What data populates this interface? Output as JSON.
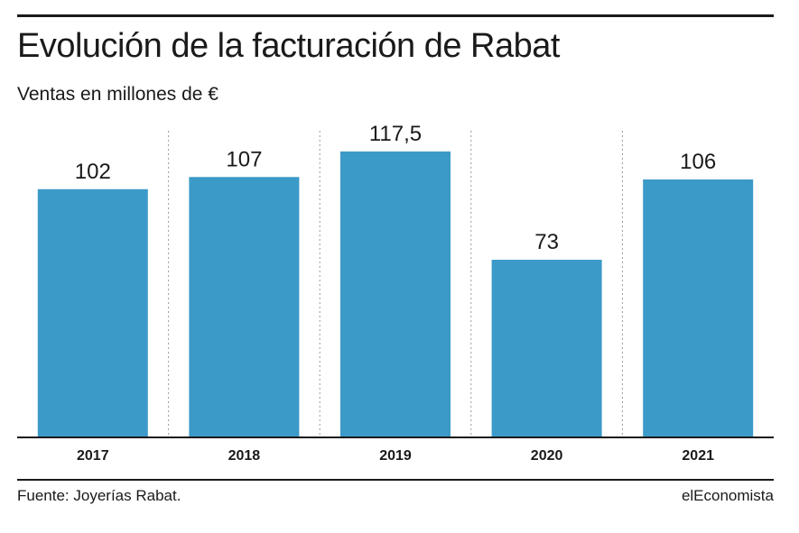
{
  "chart_data": {
    "type": "bar",
    "title": "Evolución de la facturación de Rabat",
    "subtitle": "Ventas en millones de €",
    "categories": [
      "2017",
      "2018",
      "2019",
      "2020",
      "2021"
    ],
    "values": [
      102,
      107,
      117.5,
      73,
      106
    ],
    "value_labels": [
      "102",
      "107",
      "117,5",
      "73",
      "106"
    ],
    "ylim": [
      0,
      126
    ],
    "grid": false,
    "bar_color": "#3b9ac8"
  },
  "footer": {
    "source": "Fuente: Joyerías Rabat.",
    "brand": "elEconomista"
  }
}
